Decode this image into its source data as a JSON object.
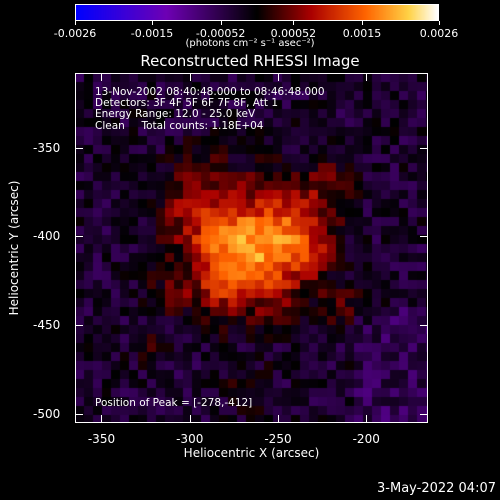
{
  "colorbar": {
    "ticks": [
      "-0.0026",
      "-0.0015",
      "-0.00052",
      "0.00052",
      "0.0015",
      "0.0026"
    ],
    "units": "(photons cm⁻² s⁻¹ asec⁻²)",
    "range": [
      -0.0026,
      0.0026
    ],
    "colors": [
      "#0000ff",
      "#6a00b0",
      "#000000",
      "#a00000",
      "#ff6000",
      "#ffd040",
      "#ffffff"
    ]
  },
  "title": "Reconstructed RHESSI Image",
  "annotations": {
    "time": "13-Nov-2002 08:40:48.000 to 08:46:48.000",
    "detectors": "Detectors: 3F 4F 5F 6F 7F 8F, Att 1",
    "energy": "Energy Range: 12.0 - 25.0 keV",
    "clean": "Clean     Total counts: 1.18E+04",
    "peak": "Position of Peak = [-278,-412]"
  },
  "axes": {
    "xlabel": "Heliocentric X (arcsec)",
    "ylabel": "Heliocentric Y (arcsec)",
    "xticks": [
      "-350",
      "-300",
      "-250",
      "-200"
    ],
    "xtick_values": [
      -350,
      -300,
      -250,
      -200
    ],
    "yticks": [
      "-350",
      "-400",
      "-450",
      "-500"
    ],
    "ytick_values": [
      -350,
      -400,
      -450,
      -500
    ],
    "xlim": [
      -365,
      -165
    ],
    "ylim": [
      -505,
      -308
    ]
  },
  "footer": {
    "date": "3-May-2022 04:07"
  }
}
